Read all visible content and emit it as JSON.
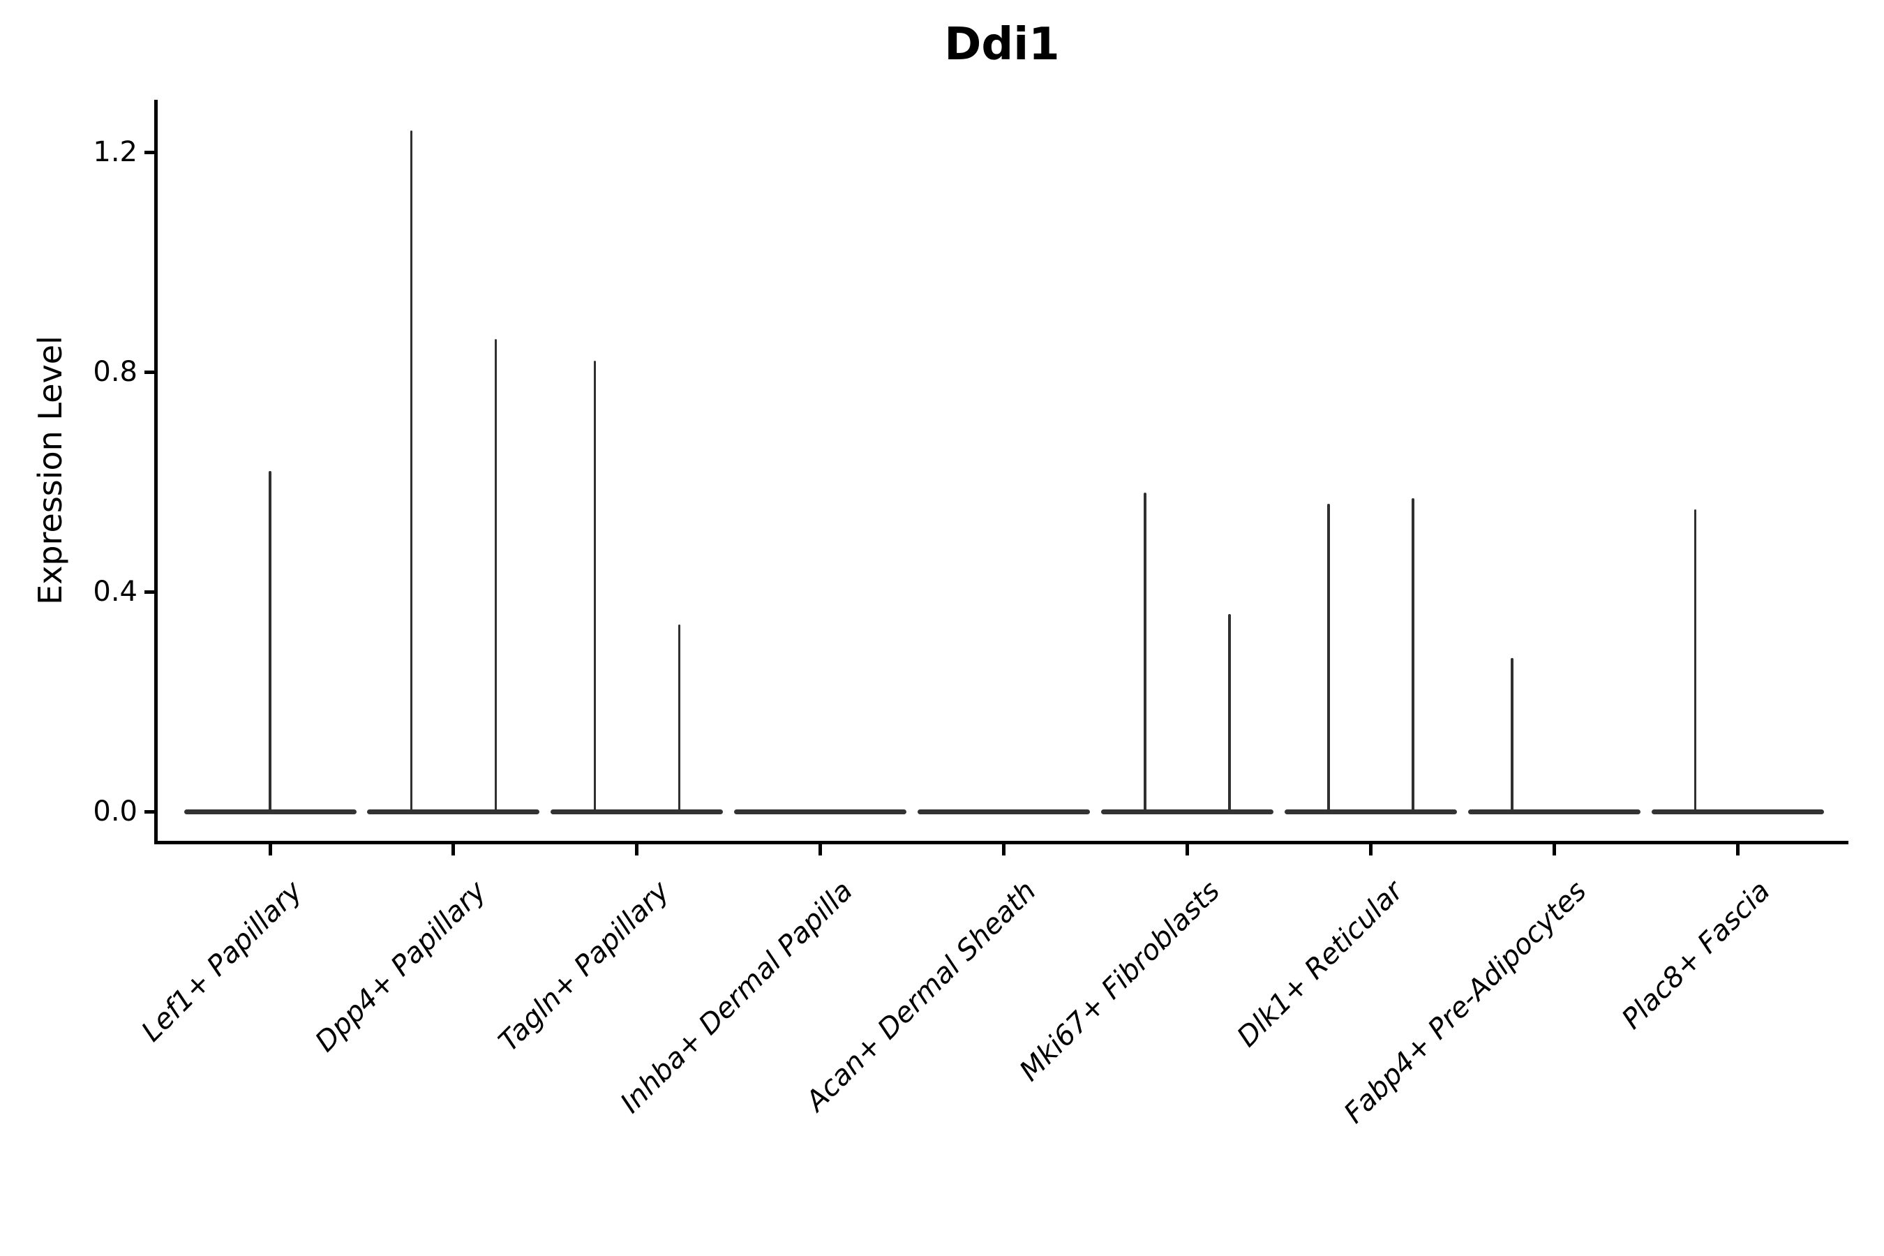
{
  "figure": {
    "background": "#ffffff"
  },
  "chart_data": {
    "type": "violin",
    "title": "Ddi1",
    "ylabel": "Expression Level",
    "xlabel": "",
    "ylim": [
      0,
      1.3
    ],
    "grid": false,
    "legend": "none",
    "violin_color": "#333333",
    "spike_color": "#303030",
    "axis_color": "#000000",
    "yticks": [
      {
        "label": "0.0",
        "value": 0.0
      },
      {
        "label": "0.4",
        "value": 0.4
      },
      {
        "label": "0.8",
        "value": 0.8
      },
      {
        "label": "1.2",
        "value": 1.2
      }
    ],
    "categories": [
      {
        "label": "Lef1+ Papillary",
        "baseline": 0.0,
        "spikes": [
          {
            "offset": 0.0,
            "max_expression": 0.62
          }
        ]
      },
      {
        "label": "Dpp4+ Papillary",
        "baseline": 0.0,
        "spikes": [
          {
            "offset": -0.23,
            "max_expression": 1.24
          },
          {
            "offset": 0.23,
            "max_expression": 0.86
          }
        ]
      },
      {
        "label": "Tagln+ Papillary",
        "baseline": 0.0,
        "spikes": [
          {
            "offset": -0.23,
            "max_expression": 0.82
          },
          {
            "offset": 0.23,
            "max_expression": 0.34
          }
        ]
      },
      {
        "label": "Inhba+ Dermal Papilla",
        "baseline": 0.0,
        "spikes": []
      },
      {
        "label": "Acan+ Dermal Sheath",
        "baseline": 0.0,
        "spikes": []
      },
      {
        "label": "Mki67+ Fibroblasts",
        "baseline": 0.0,
        "spikes": [
          {
            "offset": -0.23,
            "max_expression": 0.58
          },
          {
            "offset": 0.23,
            "max_expression": 0.36
          }
        ]
      },
      {
        "label": "Dlk1+ Reticular",
        "baseline": 0.0,
        "spikes": [
          {
            "offset": -0.23,
            "max_expression": 0.56
          },
          {
            "offset": 0.23,
            "max_expression": 0.57
          }
        ]
      },
      {
        "label": "Fabp4+ Pre-Adipocytes",
        "baseline": 0.0,
        "spikes": [
          {
            "offset": -0.23,
            "max_expression": 0.28
          }
        ]
      },
      {
        "label": "Plac8+ Fascia",
        "baseline": 0.0,
        "spikes": [
          {
            "offset": -0.23,
            "max_expression": 0.55
          }
        ]
      }
    ]
  }
}
